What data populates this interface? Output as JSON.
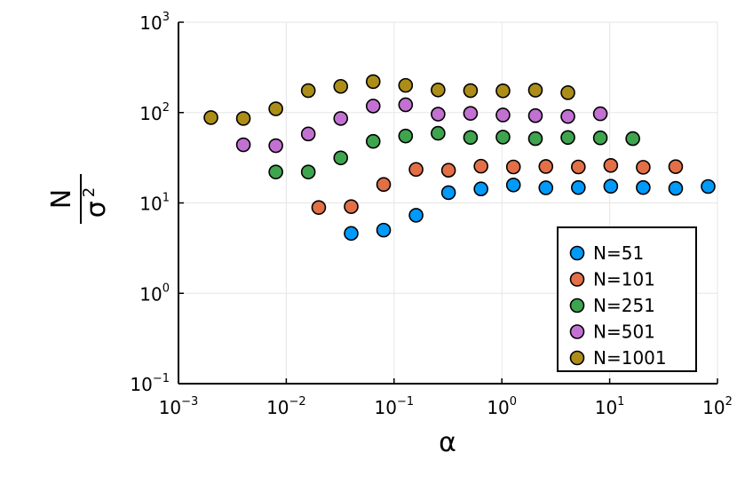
{
  "chart_data": {
    "type": "scatter",
    "xlabel": "α",
    "ylabel": {
      "numerator_symbol": "σ",
      "numerator_exponent": "2",
      "denominator": "N"
    },
    "xscale": "log",
    "yscale": "log",
    "xlim": [
      0.001,
      100
    ],
    "ylim": [
      0.1,
      1000
    ],
    "x_ticks": [
      {
        "value": 0.001,
        "base": "10",
        "exp": "−3"
      },
      {
        "value": 0.01,
        "base": "10",
        "exp": "−2"
      },
      {
        "value": 0.1,
        "base": "10",
        "exp": "−1"
      },
      {
        "value": 1,
        "base": "10",
        "exp": "0"
      },
      {
        "value": 10,
        "base": "10",
        "exp": "1"
      },
      {
        "value": 100,
        "base": "10",
        "exp": "2"
      }
    ],
    "y_ticks": [
      {
        "value": 0.1,
        "base": "10",
        "exp": "−1"
      },
      {
        "value": 1,
        "base": "10",
        "exp": "0"
      },
      {
        "value": 10,
        "base": "10",
        "exp": "1"
      },
      {
        "value": 100,
        "base": "10",
        "exp": "2"
      },
      {
        "value": 1000,
        "base": "10",
        "exp": "3"
      }
    ],
    "grid": true,
    "legend_position": "bottom-right",
    "series": [
      {
        "name": "N=51",
        "color": "#009AFA",
        "points": [
          [
            0.04,
            4.6
          ],
          [
            0.08,
            5.0
          ],
          [
            0.16,
            7.3
          ],
          [
            0.32,
            13
          ],
          [
            0.64,
            14.3
          ],
          [
            1.28,
            15.8
          ],
          [
            2.56,
            14.7
          ],
          [
            5.12,
            14.8
          ],
          [
            10.24,
            15.3
          ],
          [
            20.48,
            14.8
          ],
          [
            40.96,
            14.5
          ],
          [
            81.92,
            15.2
          ]
        ]
      },
      {
        "name": "N=101",
        "color": "#E36F47",
        "points": [
          [
            0.02,
            8.9
          ],
          [
            0.04,
            9.1
          ],
          [
            0.08,
            16
          ],
          [
            0.16,
            23.5
          ],
          [
            0.32,
            23
          ],
          [
            0.64,
            25.5
          ],
          [
            1.28,
            25
          ],
          [
            2.56,
            25.3
          ],
          [
            5.12,
            25
          ],
          [
            10.24,
            26
          ],
          [
            20.48,
            24.8
          ],
          [
            40.96,
            25.2
          ]
        ]
      },
      {
        "name": "N=251",
        "color": "#3EA44E",
        "points": [
          [
            0.008,
            22
          ],
          [
            0.016,
            22
          ],
          [
            0.032,
            31.5
          ],
          [
            0.064,
            48
          ],
          [
            0.128,
            55
          ],
          [
            0.256,
            59
          ],
          [
            0.512,
            53
          ],
          [
            1.024,
            53.5
          ],
          [
            2.048,
            51.5
          ],
          [
            4.096,
            53
          ],
          [
            8.192,
            52.5
          ],
          [
            16.384,
            51.5
          ]
        ]
      },
      {
        "name": "N=501",
        "color": "#C271D2",
        "points": [
          [
            0.004,
            44
          ],
          [
            0.008,
            43
          ],
          [
            0.016,
            58
          ],
          [
            0.032,
            86
          ],
          [
            0.064,
            118
          ],
          [
            0.128,
            122
          ],
          [
            0.256,
            96
          ],
          [
            0.512,
            98
          ],
          [
            1.024,
            94
          ],
          [
            2.048,
            92.5
          ],
          [
            4.096,
            90.5
          ],
          [
            8.192,
            97
          ]
        ]
      },
      {
        "name": "N=1001",
        "color": "#AC8D18",
        "points": [
          [
            0.002,
            88
          ],
          [
            0.004,
            86
          ],
          [
            0.008,
            110
          ],
          [
            0.016,
            175
          ],
          [
            0.032,
            195
          ],
          [
            0.064,
            220
          ],
          [
            0.128,
            200
          ],
          [
            0.256,
            178
          ],
          [
            0.512,
            175
          ],
          [
            1.024,
            174
          ],
          [
            2.048,
            177
          ],
          [
            4.096,
            166
          ]
        ]
      }
    ]
  }
}
